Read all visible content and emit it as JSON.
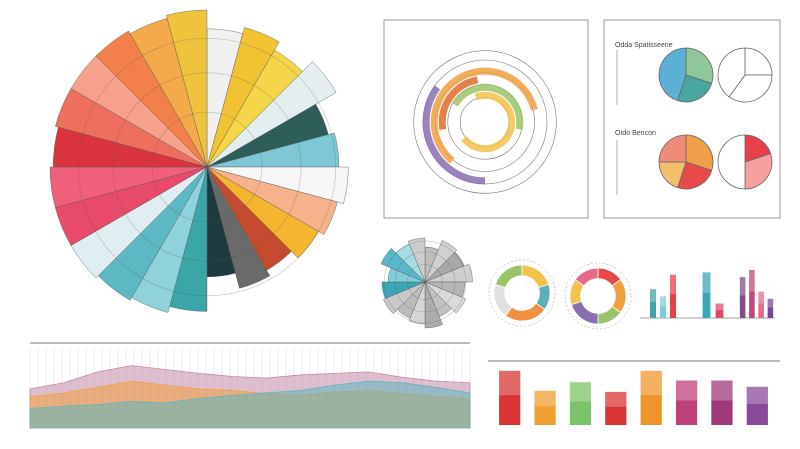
{
  "chart_data": [
    {
      "type": "polar",
      "rlim": [
        0,
        100
      ],
      "values": [
        88,
        92,
        86,
        95,
        80,
        84,
        90,
        86,
        82,
        76,
        80,
        70,
        92,
        96,
        98,
        100,
        100,
        100,
        98,
        100,
        100,
        100,
        98,
        100
      ],
      "colors": [
        "#f0f0f0",
        "#f1c232",
        "#f5d54a",
        "#e4eef0",
        "#2e5e5a",
        "#7dc8d4",
        "#f7f7f7",
        "#f6b28a",
        "#f5b52e",
        "#c64b2e",
        "#6a6a6a",
        "#1d3b3f",
        "#3aa6a8",
        "#8fd2dc",
        "#5cb9c4",
        "#dfeff1",
        "#e84a6a",
        "#f0607a",
        "#d9343f",
        "#ee6f5e",
        "#f7a08c",
        "#f3804a",
        "#f4a94a",
        "#f0c33c"
      ]
    },
    {
      "type": "radial",
      "values": [
        35,
        60,
        25,
        45,
        70
      ],
      "colors": [
        "#8a6fb0",
        "#f0a040",
        "#e06a2c",
        "#9bc46a",
        "#f3c24a"
      ]
    },
    {
      "type": "pie",
      "title": "Odda Spatisseene",
      "values": [
        30,
        25,
        45
      ],
      "colors": [
        "#8fc79a",
        "#4aa7a0",
        "#5bb0d6"
      ]
    },
    {
      "type": "pie",
      "values": [
        25,
        35,
        40
      ],
      "colors": [
        "#ffffff",
        "#ffffff",
        "#ffffff"
      ]
    },
    {
      "type": "pie",
      "title": "Otdo Bencon",
      "values": [
        30,
        25,
        20,
        25
      ],
      "colors": [
        "#f0a04a",
        "#e84a4a",
        "#f2c06a",
        "#f08a7a"
      ]
    },
    {
      "type": "pie",
      "values": [
        20,
        30,
        50
      ],
      "colors": [
        "#e8404a",
        "#f6a0a0",
        "#ffffff"
      ]
    },
    {
      "type": "polar",
      "rlim": [
        0,
        100
      ],
      "values": [
        70,
        90,
        85,
        95,
        80,
        88,
        75,
        92,
        84,
        78,
        90,
        86,
        74,
        95,
        82,
        88
      ],
      "colors": [
        "#bdbdbd",
        "#d0d0d0",
        "#a8a8a8",
        "#cfcfcf",
        "#b5b5b5",
        "#dadada",
        "#c2c2c2",
        "#adadad",
        "#d5d5d5",
        "#bcbcbc",
        "#c9c9c9",
        "#3aa6b8",
        "#7fcdd8",
        "#58b7c8",
        "#a6dce4",
        "#cccccc"
      ]
    },
    {
      "type": "donut",
      "values": [
        20,
        15,
        25,
        20,
        20
      ],
      "colors": [
        "#f3c24a",
        "#5bb0b8",
        "#f09040",
        "#e0e0e0",
        "#9bc46a"
      ]
    },
    {
      "type": "donut",
      "values": [
        15,
        20,
        15,
        20,
        15,
        15
      ],
      "colors": [
        "#e84a4a",
        "#f0a040",
        "#9bc46a",
        "#8a6fb0",
        "#f3c24a",
        "#e86a8a"
      ]
    },
    {
      "type": "bar",
      "ylim": [
        0,
        100
      ],
      "values": [
        60,
        45,
        90
      ],
      "colors": [
        "#3aa6a8",
        "#7fcdd8",
        "#e8404a"
      ]
    },
    {
      "type": "bar",
      "ylim": [
        0,
        100
      ],
      "values": [
        95,
        30
      ],
      "colors": [
        "#3aa6b8",
        "#e04a6a"
      ]
    },
    {
      "type": "bar",
      "ylim": [
        0,
        100
      ],
      "values": [
        85,
        100,
        55,
        40
      ],
      "colors": [
        "#8a4a8a",
        "#c0487a",
        "#e86a8a",
        "#7a4a9a"
      ]
    },
    {
      "type": "bar",
      "ylim": [
        0,
        100
      ],
      "values": [
        95,
        60,
        75,
        58,
        95,
        78,
        78,
        67
      ],
      "colors": [
        "#d93434",
        "#f0a030",
        "#7cc46a",
        "#d93434",
        "#f0952c",
        "#c0407a",
        "#a03a7a",
        "#8a4a9a"
      ]
    },
    {
      "type": "area",
      "ylim": [
        0,
        100
      ],
      "series": [
        {
          "color": "#c48aa8",
          "values": [
            50,
            58,
            72,
            80,
            75,
            70,
            66,
            64,
            68,
            70,
            72,
            65,
            60,
            58
          ]
        },
        {
          "color": "#f2a03d",
          "values": [
            40,
            45,
            52,
            60,
            55,
            50,
            48,
            44,
            42,
            46,
            48,
            44,
            40,
            38
          ]
        },
        {
          "color": "#5bb8c0",
          "values": [
            25,
            28,
            30,
            34,
            32,
            38,
            42,
            45,
            48,
            55,
            60,
            58,
            52,
            45
          ]
        }
      ]
    }
  ]
}
